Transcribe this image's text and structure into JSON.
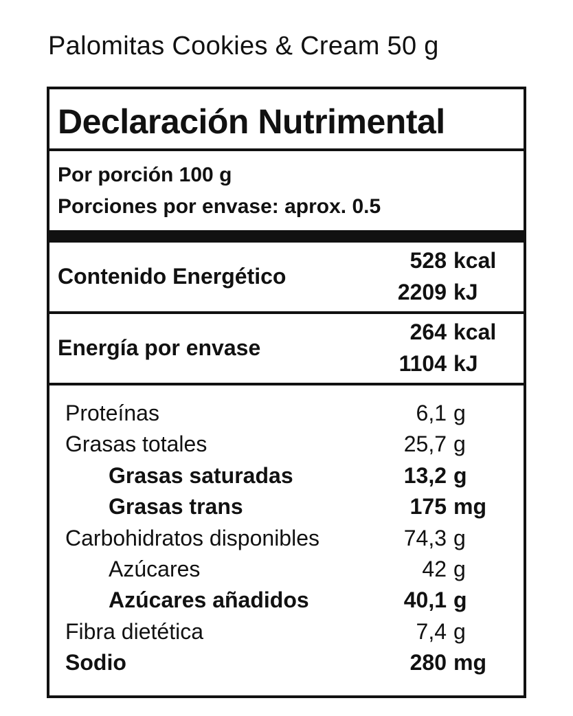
{
  "title": "Palomitas Cookies & Cream 50 g",
  "label": {
    "heading": "Declaración Nutrimental",
    "serving": [
      "Por porción 100 g",
      "Porciones por envase: aprox. 0.5"
    ],
    "energy": [
      {
        "name": "Contenido Energético",
        "values": [
          {
            "amount": "528",
            "unit": "kcal"
          },
          {
            "amount": "2209",
            "unit": "kJ"
          }
        ]
      },
      {
        "name": "Energía por envase",
        "values": [
          {
            "amount": "264",
            "unit": "kcal"
          },
          {
            "amount": "1104",
            "unit": "kJ"
          }
        ]
      }
    ],
    "nutrients": [
      {
        "name": "Proteínas",
        "amount": "6,1",
        "unit": "g",
        "bold": false,
        "indent": false
      },
      {
        "name": "Grasas totales",
        "amount": "25,7",
        "unit": "g",
        "bold": false,
        "indent": false
      },
      {
        "name": "Grasas saturadas",
        "amount": "13,2",
        "unit": "g",
        "bold": true,
        "indent": true
      },
      {
        "name": "Grasas trans",
        "amount": "175",
        "unit": "mg",
        "bold": true,
        "indent": true
      },
      {
        "name": "Carbohidratos disponibles",
        "amount": "74,3",
        "unit": "g",
        "bold": false,
        "indent": false
      },
      {
        "name": "Azúcares",
        "amount": "42",
        "unit": "g",
        "bold": false,
        "indent": true
      },
      {
        "name": "Azúcares añadidos",
        "amount": "40,1",
        "unit": "g",
        "bold": true,
        "indent": true
      },
      {
        "name": "Fibra dietética",
        "amount": "7,4",
        "unit": "g",
        "bold": false,
        "indent": false
      },
      {
        "name": "Sodio",
        "amount": "280",
        "unit": "mg",
        "bold": true,
        "indent": false
      }
    ]
  }
}
